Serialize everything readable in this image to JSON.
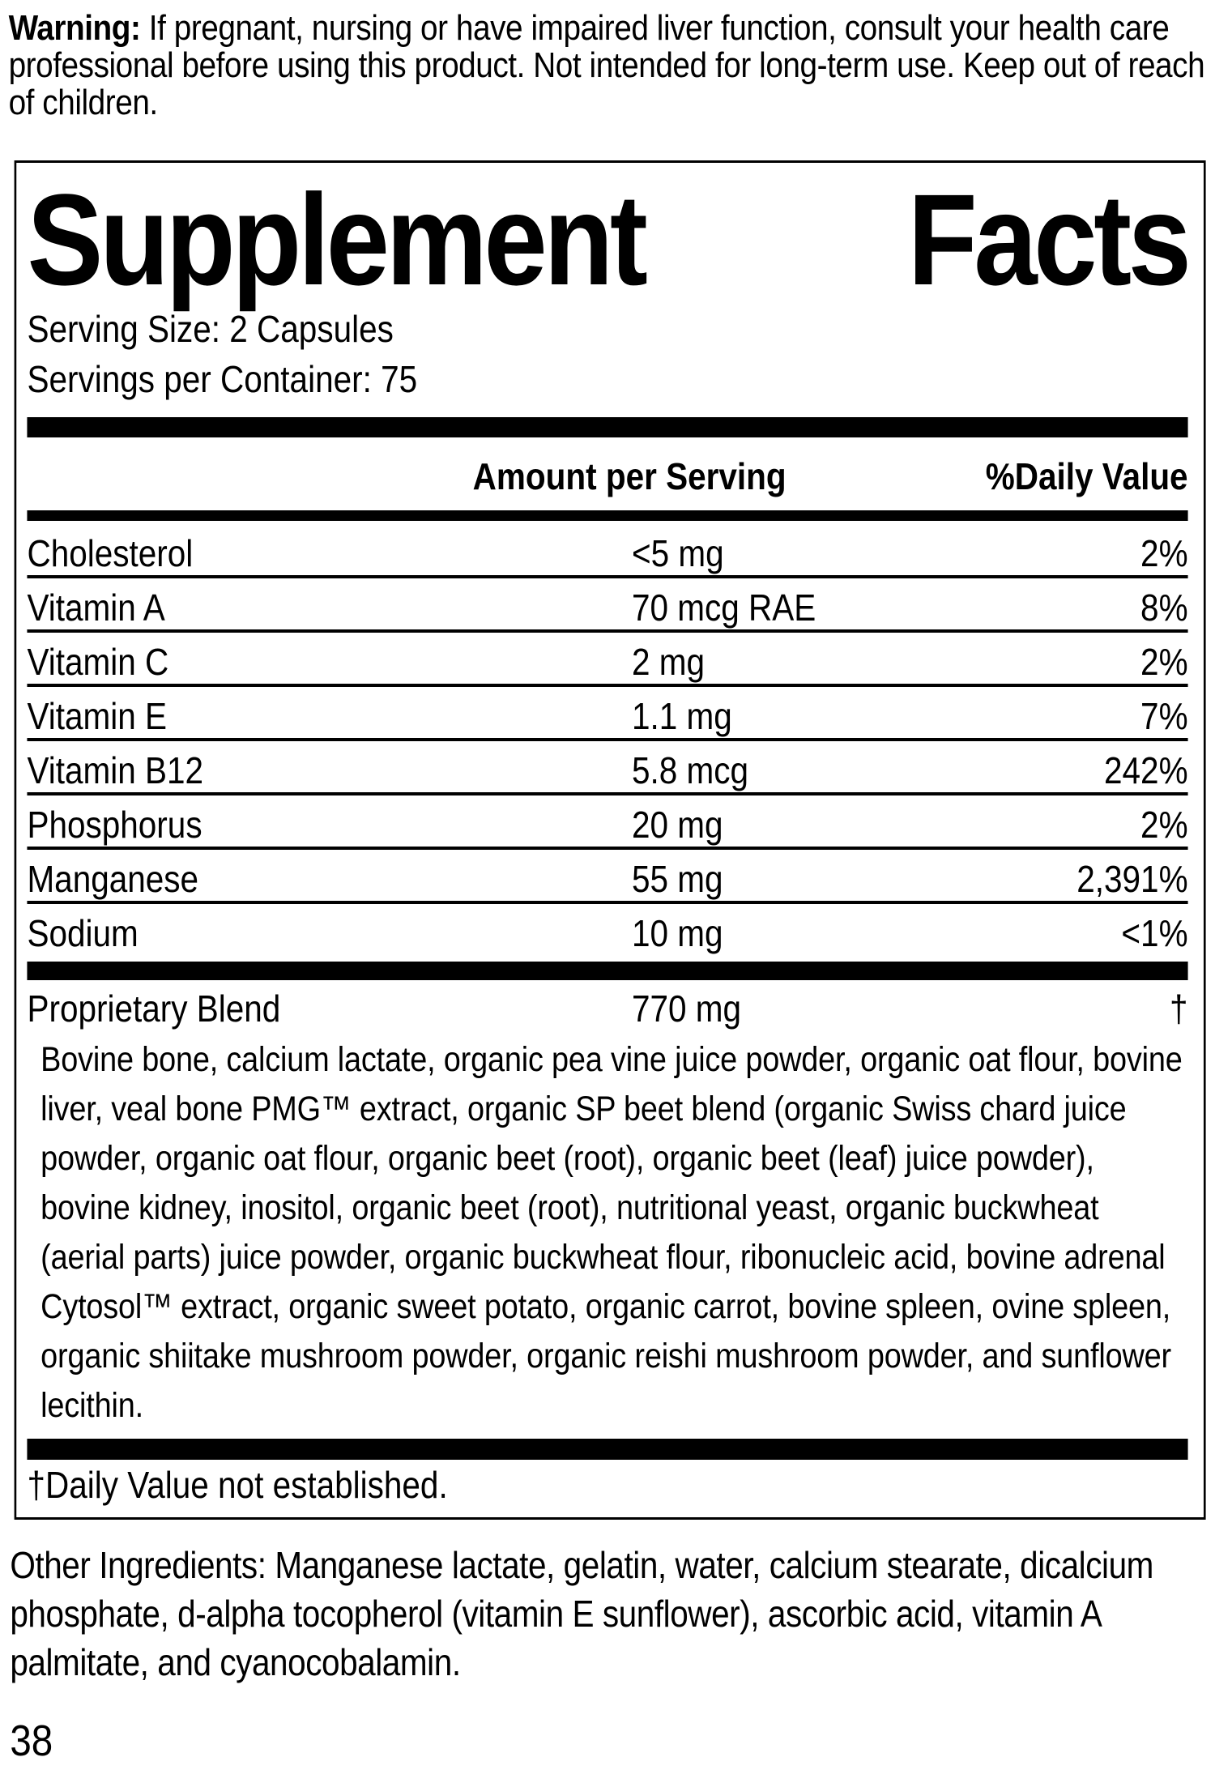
{
  "colors": {
    "ink": "#000000",
    "paper": "#ffffff"
  },
  "warning": {
    "label": "Warning:",
    "text": "If pregnant, nursing or have impaired liver function, consult your health care professional before using this product. Not intended for long-term use. Keep out of reach of children."
  },
  "panel": {
    "title": [
      "Supplement",
      "Facts"
    ],
    "serving_size": "Serving Size: 2 Capsules",
    "servings_per_container": "Servings per Container: 75",
    "header": {
      "amount": "Amount per Serving",
      "daily_value": "%Daily Value"
    },
    "nutrients": [
      {
        "name": "Cholesterol",
        "amount": "<5 mg",
        "dv": "2%"
      },
      {
        "name": "Vitamin A",
        "amount": "70 mcg RAE",
        "dv": "8%"
      },
      {
        "name": "Vitamin C",
        "amount": "2 mg",
        "dv": "2%"
      },
      {
        "name": "Vitamin E",
        "amount": "1.1 mg",
        "dv": "7%"
      },
      {
        "name": "Vitamin B12",
        "amount": "5.8 mcg",
        "dv": "242%"
      },
      {
        "name": "Phosphorus",
        "amount": "20 mg",
        "dv": "2%"
      },
      {
        "name": "Manganese",
        "amount": "55 mg",
        "dv": "2,391%"
      },
      {
        "name": "Sodium",
        "amount": "10 mg",
        "dv": "<1%"
      }
    ],
    "proprietary_blend": {
      "name": "Proprietary Blend",
      "amount": "770 mg",
      "dv": "†",
      "ingredients": "Bovine bone, calcium lactate, organic pea vine juice powder, organic oat flour, bovine liver, veal bone PMG™ extract, organic SP beet blend (organic Swiss chard juice powder, organic oat flour, organic beet (root), organic beet (leaf) juice powder), bovine kidney, inositol, organic beet (root), nutritional yeast, organic buckwheat (aerial parts) juice powder, organic buckwheat flour, ribonucleic acid, bovine adrenal Cytosol™ extract, organic sweet potato, organic carrot, bovine spleen, ovine spleen, organic shiitake mushroom powder, organic reishi mushroom powder, and sunflower lecithin."
    },
    "footnote": "†Daily Value not established."
  },
  "other_ingredients": "Other Ingredients: Manganese lactate, gelatin, water, calcium stearate, dicalcium phosphate, d-alpha tocopherol (vitamin E sunflower), ascorbic acid, vitamin A palmitate, and cyanocobalamin.",
  "page_number": "38"
}
